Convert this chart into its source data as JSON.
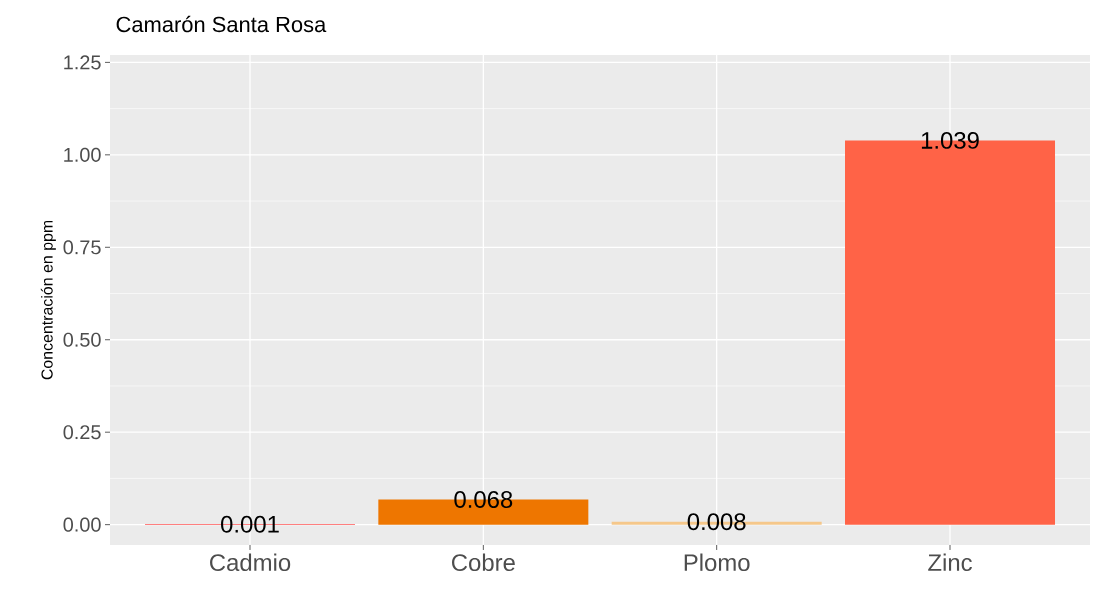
{
  "chart_data": {
    "type": "bar",
    "title": "Camarón Santa Rosa",
    "ylabel": "Concentración en ppm",
    "categories": [
      "Cadmio",
      "Cobre",
      "Plomo",
      "Zinc"
    ],
    "values": [
      0.001,
      0.068,
      0.008,
      1.039
    ],
    "colors": [
      "#ff0000",
      "#ee7600",
      "#f5c78a",
      "#ff6347"
    ],
    "value_labels": [
      "0.001",
      "0.068",
      "0.008",
      "1.039"
    ],
    "ylim": [
      -0.055,
      1.27
    ],
    "yticks": [
      {
        "value": 0,
        "label": "0.00"
      },
      {
        "value": 0.25,
        "label": "0.25"
      },
      {
        "value": 0.5,
        "label": "0.50"
      },
      {
        "value": 0.75,
        "label": "0.75"
      },
      {
        "value": 1,
        "label": "1.00"
      },
      {
        "value": 1.25,
        "label": "1.25"
      }
    ],
    "grid": true
  }
}
